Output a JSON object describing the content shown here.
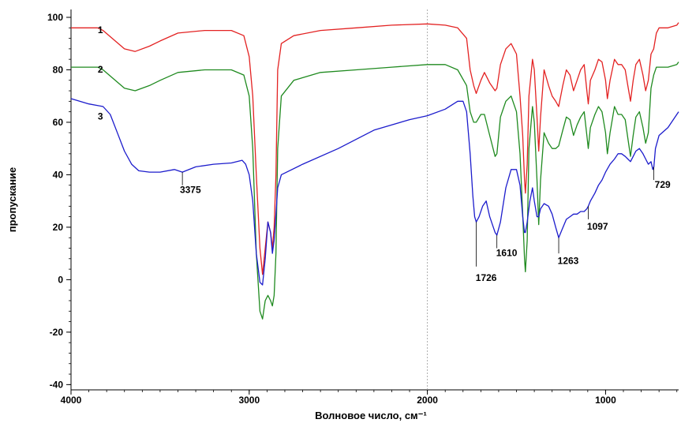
{
  "chart_data": {
    "type": "line",
    "title": "",
    "xlabel": "Волновое число, см⁻¹",
    "ylabel": "пропускание",
    "xlim": [
      4000,
      590
    ],
    "ylim": [
      -42,
      103
    ],
    "x_ticks": [
      4000,
      3000,
      2000,
      1000
    ],
    "x_tick_labels": [
      "4000",
      "3000",
      "2000",
      "1000"
    ],
    "y_ticks": [
      100,
      80,
      60,
      40,
      20,
      0,
      -20,
      -40
    ],
    "y_tick_labels": [
      "100",
      "80",
      "60",
      "40",
      "20",
      "0",
      "-20",
      "-40"
    ],
    "grid": false,
    "colors": {
      "series_1": "#e32222",
      "series_2": "#1f8a1f",
      "series_3": "#1c1ccc"
    },
    "series": [
      {
        "name": "1",
        "color": "#e32222",
        "points": [
          [
            4000,
            96
          ],
          [
            3850,
            96
          ],
          [
            3820,
            95
          ],
          [
            3700,
            88
          ],
          [
            3640,
            87
          ],
          [
            3560,
            89
          ],
          [
            3500,
            91
          ],
          [
            3400,
            94
          ],
          [
            3250,
            95
          ],
          [
            3100,
            95
          ],
          [
            3030,
            93
          ],
          [
            3000,
            85
          ],
          [
            2980,
            70
          ],
          [
            2960,
            40
          ],
          [
            2940,
            12
          ],
          [
            2925,
            2
          ],
          [
            2910,
            12
          ],
          [
            2895,
            22
          ],
          [
            2880,
            18
          ],
          [
            2870,
            12
          ],
          [
            2860,
            20
          ],
          [
            2850,
            40
          ],
          [
            2840,
            80
          ],
          [
            2820,
            90
          ],
          [
            2750,
            93
          ],
          [
            2600,
            95
          ],
          [
            2400,
            96
          ],
          [
            2200,
            97
          ],
          [
            2000,
            97.5
          ],
          [
            1900,
            97
          ],
          [
            1830,
            96
          ],
          [
            1780,
            92
          ],
          [
            1760,
            80
          ],
          [
            1740,
            74
          ],
          [
            1726,
            71
          ],
          [
            1700,
            76
          ],
          [
            1680,
            79
          ],
          [
            1650,
            75
          ],
          [
            1620,
            72
          ],
          [
            1610,
            73
          ],
          [
            1590,
            82
          ],
          [
            1560,
            88
          ],
          [
            1530,
            90
          ],
          [
            1500,
            86
          ],
          [
            1480,
            70
          ],
          [
            1465,
            55
          ],
          [
            1455,
            38
          ],
          [
            1450,
            33
          ],
          [
            1440,
            44
          ],
          [
            1430,
            70
          ],
          [
            1410,
            84
          ],
          [
            1400,
            80
          ],
          [
            1385,
            62
          ],
          [
            1375,
            49
          ],
          [
            1365,
            62
          ],
          [
            1345,
            80
          ],
          [
            1320,
            74
          ],
          [
            1300,
            70
          ],
          [
            1280,
            68
          ],
          [
            1263,
            66
          ],
          [
            1240,
            74
          ],
          [
            1220,
            80
          ],
          [
            1200,
            78
          ],
          [
            1180,
            72
          ],
          [
            1160,
            76
          ],
          [
            1140,
            80
          ],
          [
            1120,
            82
          ],
          [
            1105,
            72
          ],
          [
            1097,
            67
          ],
          [
            1085,
            76
          ],
          [
            1060,
            80
          ],
          [
            1040,
            84
          ],
          [
            1020,
            83
          ],
          [
            1000,
            76
          ],
          [
            990,
            69
          ],
          [
            975,
            76
          ],
          [
            950,
            84
          ],
          [
            930,
            82
          ],
          [
            910,
            82
          ],
          [
            890,
            80
          ],
          [
            875,
            74
          ],
          [
            860,
            68
          ],
          [
            845,
            76
          ],
          [
            830,
            82
          ],
          [
            810,
            84
          ],
          [
            790,
            78
          ],
          [
            775,
            72
          ],
          [
            760,
            76
          ],
          [
            745,
            86
          ],
          [
            730,
            88
          ],
          [
            715,
            94
          ],
          [
            700,
            96
          ],
          [
            650,
            96
          ],
          [
            600,
            97
          ],
          [
            590,
            98
          ]
        ]
      },
      {
        "name": "2",
        "color": "#1f8a1f",
        "points": [
          [
            4000,
            81
          ],
          [
            3850,
            81
          ],
          [
            3820,
            80
          ],
          [
            3700,
            73
          ],
          [
            3640,
            72
          ],
          [
            3560,
            74
          ],
          [
            3500,
            76
          ],
          [
            3400,
            79
          ],
          [
            3250,
            80
          ],
          [
            3100,
            80
          ],
          [
            3030,
            78
          ],
          [
            3000,
            70
          ],
          [
            2980,
            50
          ],
          [
            2960,
            10
          ],
          [
            2940,
            -12
          ],
          [
            2925,
            -15
          ],
          [
            2910,
            -8
          ],
          [
            2895,
            -6
          ],
          [
            2880,
            -8
          ],
          [
            2870,
            -10
          ],
          [
            2860,
            -6
          ],
          [
            2850,
            10
          ],
          [
            2840,
            50
          ],
          [
            2820,
            70
          ],
          [
            2750,
            76
          ],
          [
            2600,
            79
          ],
          [
            2400,
            80
          ],
          [
            2200,
            81
          ],
          [
            2000,
            82
          ],
          [
            1900,
            82
          ],
          [
            1830,
            80
          ],
          [
            1780,
            74
          ],
          [
            1760,
            64
          ],
          [
            1740,
            60
          ],
          [
            1726,
            60
          ],
          [
            1700,
            63
          ],
          [
            1680,
            63
          ],
          [
            1650,
            55
          ],
          [
            1620,
            47
          ],
          [
            1610,
            48
          ],
          [
            1590,
            62
          ],
          [
            1560,
            68
          ],
          [
            1530,
            70
          ],
          [
            1500,
            64
          ],
          [
            1480,
            48
          ],
          [
            1465,
            25
          ],
          [
            1455,
            8
          ],
          [
            1450,
            3
          ],
          [
            1440,
            15
          ],
          [
            1430,
            50
          ],
          [
            1410,
            66
          ],
          [
            1400,
            60
          ],
          [
            1385,
            38
          ],
          [
            1375,
            21
          ],
          [
            1365,
            38
          ],
          [
            1345,
            56
          ],
          [
            1320,
            52
          ],
          [
            1300,
            50
          ],
          [
            1280,
            50
          ],
          [
            1263,
            51
          ],
          [
            1240,
            57
          ],
          [
            1220,
            62
          ],
          [
            1200,
            61
          ],
          [
            1180,
            55
          ],
          [
            1160,
            59
          ],
          [
            1140,
            62
          ],
          [
            1120,
            64
          ],
          [
            1105,
            55
          ],
          [
            1097,
            50
          ],
          [
            1085,
            58
          ],
          [
            1060,
            63
          ],
          [
            1040,
            66
          ],
          [
            1020,
            64
          ],
          [
            1000,
            56
          ],
          [
            990,
            48
          ],
          [
            975,
            56
          ],
          [
            950,
            66
          ],
          [
            930,
            63
          ],
          [
            910,
            63
          ],
          [
            890,
            61
          ],
          [
            875,
            54
          ],
          [
            860,
            47
          ],
          [
            845,
            55
          ],
          [
            830,
            62
          ],
          [
            810,
            64
          ],
          [
            790,
            58
          ],
          [
            775,
            52
          ],
          [
            760,
            56
          ],
          [
            745,
            73
          ],
          [
            730,
            78
          ],
          [
            715,
            81
          ],
          [
            700,
            81
          ],
          [
            650,
            81
          ],
          [
            600,
            82
          ],
          [
            590,
            83
          ]
        ]
      },
      {
        "name": "3",
        "color": "#1c1ccc",
        "points": [
          [
            4000,
            69
          ],
          [
            3900,
            67
          ],
          [
            3820,
            66
          ],
          [
            3780,
            63
          ],
          [
            3740,
            56
          ],
          [
            3700,
            49
          ],
          [
            3660,
            44
          ],
          [
            3620,
            41.5
          ],
          [
            3560,
            41
          ],
          [
            3500,
            41
          ],
          [
            3420,
            42
          ],
          [
            3375,
            41
          ],
          [
            3300,
            43
          ],
          [
            3200,
            44
          ],
          [
            3100,
            44.5
          ],
          [
            3040,
            45.5
          ],
          [
            3020,
            44
          ],
          [
            3000,
            40
          ],
          [
            2980,
            30
          ],
          [
            2960,
            10
          ],
          [
            2940,
            -1
          ],
          [
            2925,
            -2
          ],
          [
            2910,
            8
          ],
          [
            2895,
            22
          ],
          [
            2880,
            18
          ],
          [
            2870,
            10
          ],
          [
            2860,
            15
          ],
          [
            2850,
            25
          ],
          [
            2840,
            35
          ],
          [
            2820,
            40
          ],
          [
            2700,
            44
          ],
          [
            2500,
            50
          ],
          [
            2300,
            57
          ],
          [
            2100,
            61
          ],
          [
            2000,
            62.5
          ],
          [
            1900,
            65
          ],
          [
            1830,
            68
          ],
          [
            1800,
            68
          ],
          [
            1780,
            64
          ],
          [
            1760,
            48
          ],
          [
            1745,
            32
          ],
          [
            1735,
            24
          ],
          [
            1726,
            22
          ],
          [
            1710,
            24
          ],
          [
            1690,
            28
          ],
          [
            1670,
            30
          ],
          [
            1650,
            24
          ],
          [
            1620,
            18
          ],
          [
            1610,
            17
          ],
          [
            1590,
            22
          ],
          [
            1560,
            35
          ],
          [
            1530,
            42
          ],
          [
            1500,
            42
          ],
          [
            1480,
            36
          ],
          [
            1465,
            24
          ],
          [
            1455,
            18
          ],
          [
            1450,
            18
          ],
          [
            1440,
            22
          ],
          [
            1425,
            30
          ],
          [
            1410,
            35
          ],
          [
            1400,
            30
          ],
          [
            1385,
            24
          ],
          [
            1375,
            24
          ],
          [
            1365,
            27
          ],
          [
            1345,
            29
          ],
          [
            1320,
            28
          ],
          [
            1300,
            25
          ],
          [
            1280,
            20
          ],
          [
            1263,
            16
          ],
          [
            1245,
            19
          ],
          [
            1220,
            23
          ],
          [
            1200,
            24
          ],
          [
            1180,
            25
          ],
          [
            1160,
            25
          ],
          [
            1140,
            26
          ],
          [
            1120,
            26
          ],
          [
            1105,
            27
          ],
          [
            1097,
            28
          ],
          [
            1085,
            30
          ],
          [
            1060,
            33
          ],
          [
            1040,
            36
          ],
          [
            1020,
            38
          ],
          [
            1000,
            41
          ],
          [
            975,
            44
          ],
          [
            950,
            46
          ],
          [
            930,
            48
          ],
          [
            910,
            48
          ],
          [
            890,
            47
          ],
          [
            875,
            46
          ],
          [
            860,
            45
          ],
          [
            845,
            47
          ],
          [
            830,
            49
          ],
          [
            810,
            50
          ],
          [
            790,
            48
          ],
          [
            775,
            46
          ],
          [
            760,
            44
          ],
          [
            745,
            45
          ],
          [
            735,
            42
          ],
          [
            729,
            43
          ],
          [
            720,
            50
          ],
          [
            700,
            55
          ],
          [
            650,
            58
          ],
          [
            600,
            63
          ],
          [
            590,
            64
          ]
        ]
      }
    ],
    "curve_labels": [
      {
        "text": "1",
        "x": 3850,
        "y": 94
      },
      {
        "text": "2",
        "x": 3850,
        "y": 79
      },
      {
        "text": "3",
        "x": 3850,
        "y": 61
      }
    ],
    "annotations": [
      {
        "text": "3375",
        "x": 3375,
        "y_top": 41,
        "y_bottom": 36,
        "label_x": 3330,
        "label_y": 33
      },
      {
        "text": "1726",
        "x": 1726,
        "y_top": 22,
        "y_bottom": 5,
        "label_x": 1670,
        "label_y": -0.5
      },
      {
        "text": "1610",
        "x": 1610,
        "y_top": 17,
        "y_bottom": 12,
        "label_x": 1555,
        "label_y": 9
      },
      {
        "text": "1263",
        "x": 1263,
        "y_top": 16,
        "y_bottom": 10,
        "label_x": 1210,
        "label_y": 6
      },
      {
        "text": "1097",
        "x": 1097,
        "y_top": 28,
        "y_bottom": 23,
        "label_x": 1045,
        "label_y": 19
      },
      {
        "text": "729",
        "x": 729,
        "y_top": 43,
        "y_bottom": 38,
        "label_x": 680,
        "label_y": 35
      }
    ],
    "vertical_marker": {
      "x": 2000,
      "style": "dashed"
    }
  }
}
